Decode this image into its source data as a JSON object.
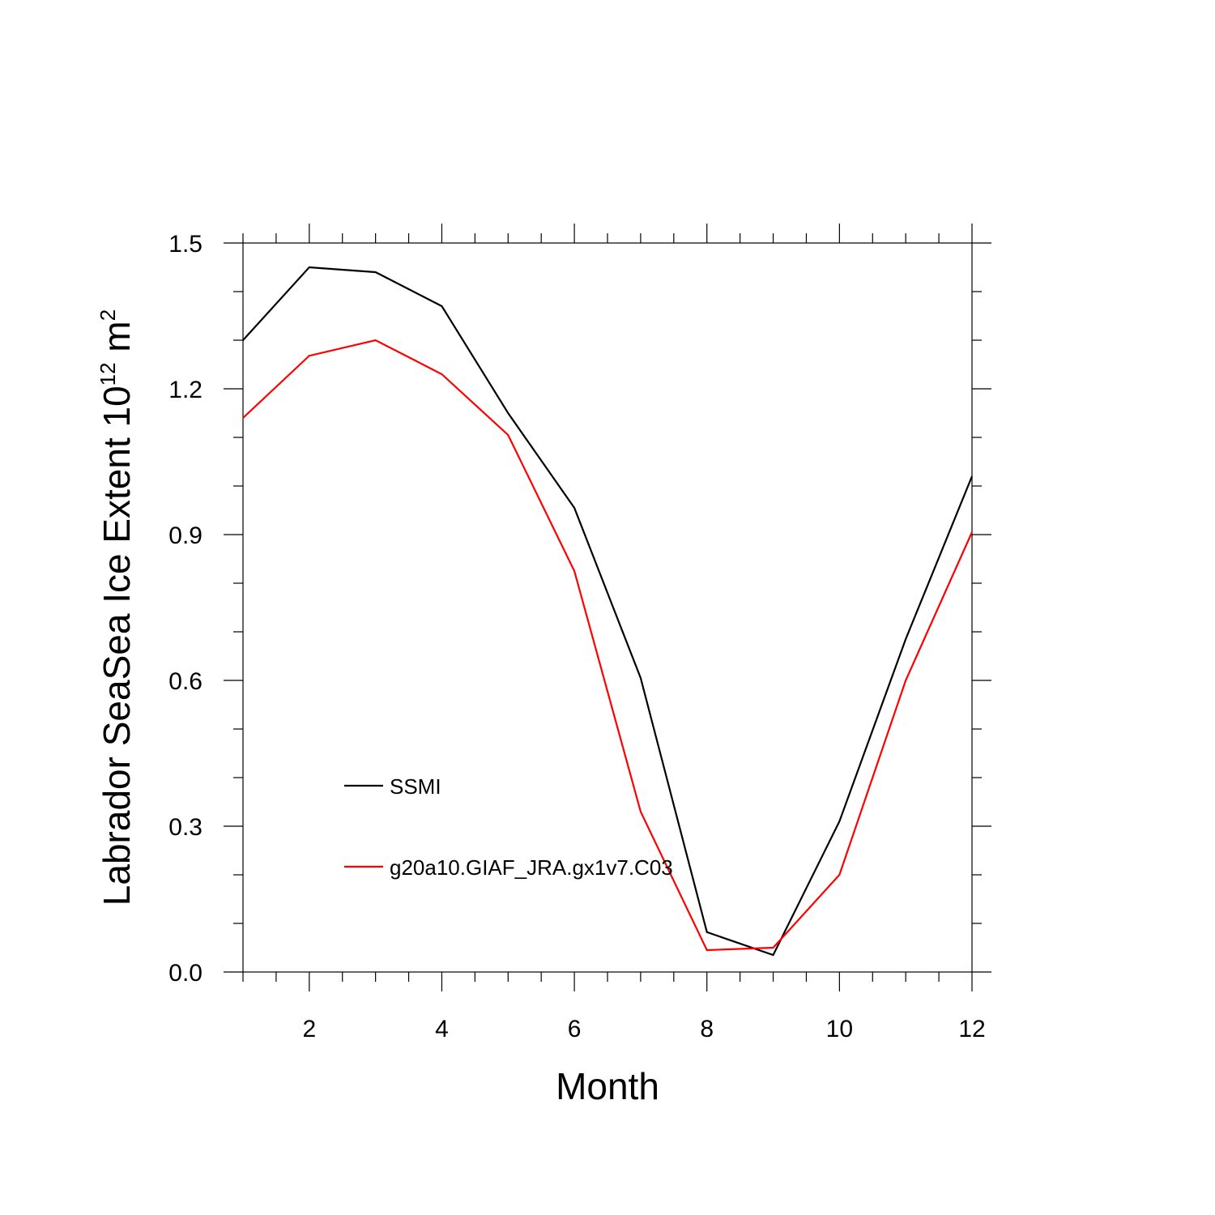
{
  "chart_data": {
    "type": "line",
    "title": "",
    "xlabel": "Month",
    "ylabel": {
      "main": "Labrador SeaSea Ice Extent 10",
      "superscript": "12",
      "unit": " m",
      "unit_superscript": "2"
    },
    "xlim": [
      1,
      12
    ],
    "ylim": [
      0,
      1.5
    ],
    "x_ticks": [
      2,
      4,
      6,
      8,
      10,
      12
    ],
    "y_ticks": [
      0,
      0.3,
      0.6,
      0.9,
      1.2,
      1.5
    ],
    "y_tick_labels": [
      "0.0",
      "0.3",
      "0.6",
      "0.9",
      "1.2",
      "1.5"
    ],
    "x_minor_step": 0.5,
    "y_minor_step": 0.1,
    "grid": false,
    "legend_position": "lower-left",
    "x": [
      1,
      2,
      3,
      4,
      5,
      6,
      7,
      8,
      9,
      10,
      11,
      12
    ],
    "series": [
      {
        "name": "SSMI",
        "color": "#000000",
        "values": [
          1.3,
          1.45,
          1.44,
          1.37,
          1.15,
          0.955,
          0.605,
          0.082,
          0.035,
          0.31,
          0.685,
          1.02
        ]
      },
      {
        "name": "g20a10.GIAF_JRA.gx1v7.C03",
        "color": "#ff0000",
        "values": [
          1.14,
          1.268,
          1.3,
          1.23,
          1.105,
          0.825,
          0.33,
          0.045,
          0.05,
          0.2,
          0.6,
          0.905
        ]
      }
    ]
  }
}
